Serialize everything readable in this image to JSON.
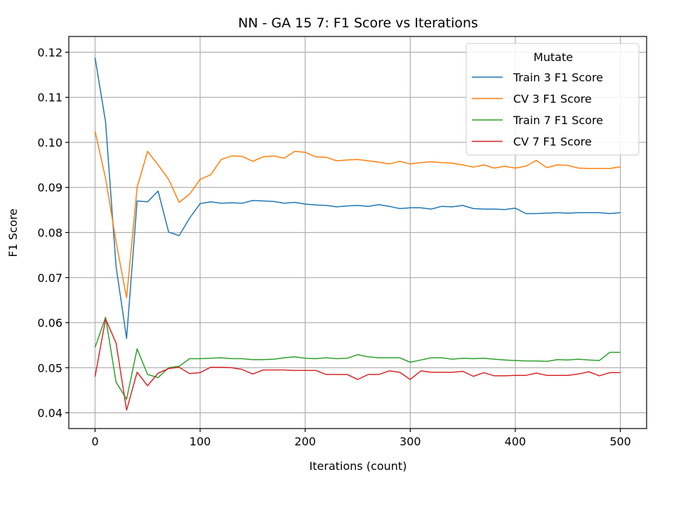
{
  "chart_data": {
    "type": "line",
    "title": "NN - GA 15 7: F1 Score vs Iterations",
    "xlabel": "Iterations (count)",
    "ylabel": "F1 Score",
    "xlim": [
      -25,
      525
    ],
    "ylim": [
      0.0365,
      0.1235
    ],
    "xticks": [
      0,
      100,
      200,
      300,
      400,
      500
    ],
    "yticks": [
      0.04,
      0.05,
      0.06,
      0.07,
      0.08,
      0.09,
      0.1,
      0.11,
      0.12
    ],
    "grid": true,
    "legend": {
      "title": "Mutate",
      "placement": "top-right"
    },
    "x": [
      0,
      10,
      20,
      30,
      40,
      50,
      60,
      70,
      80,
      90,
      100,
      110,
      120,
      130,
      140,
      150,
      160,
      170,
      180,
      190,
      200,
      210,
      220,
      230,
      240,
      250,
      260,
      270,
      280,
      290,
      300,
      310,
      320,
      330,
      340,
      350,
      360,
      370,
      380,
      390,
      400,
      410,
      420,
      430,
      440,
      450,
      460,
      470,
      480,
      490,
      500
    ],
    "series": [
      {
        "name": "Train 3 F1 Score",
        "color": "#1f77b4",
        "values": [
          0.1188,
          0.1045,
          0.0725,
          0.0565,
          0.087,
          0.0868,
          0.0892,
          0.0801,
          0.0793,
          0.0832,
          0.0864,
          0.0868,
          0.0865,
          0.0866,
          0.0865,
          0.0871,
          0.087,
          0.0869,
          0.0865,
          0.0867,
          0.0863,
          0.0861,
          0.086,
          0.0857,
          0.0859,
          0.086,
          0.0858,
          0.0862,
          0.0858,
          0.0853,
          0.0855,
          0.0855,
          0.0852,
          0.0858,
          0.0857,
          0.086,
          0.0853,
          0.0852,
          0.0852,
          0.0851,
          0.0854,
          0.0842,
          0.0842,
          0.0843,
          0.0844,
          0.0843,
          0.0844,
          0.0844,
          0.0844,
          0.0842,
          0.0844
        ]
      },
      {
        "name": "CV 3 F1 Score",
        "color": "#ff7f0e",
        "values": [
          0.1025,
          0.092,
          0.078,
          0.0655,
          0.09,
          0.098,
          0.095,
          0.0918,
          0.0867,
          0.0885,
          0.0918,
          0.0928,
          0.0962,
          0.097,
          0.0969,
          0.0958,
          0.0968,
          0.097,
          0.0965,
          0.098,
          0.0978,
          0.0968,
          0.0967,
          0.0959,
          0.0961,
          0.0962,
          0.0959,
          0.0956,
          0.0952,
          0.0958,
          0.0952,
          0.0955,
          0.0957,
          0.0955,
          0.0954,
          0.095,
          0.0945,
          0.095,
          0.0943,
          0.0947,
          0.0943,
          0.0947,
          0.096,
          0.0944,
          0.095,
          0.0949,
          0.0943,
          0.0942,
          0.0942,
          0.0942,
          0.0946
        ]
      },
      {
        "name": "Train 7 F1 Score",
        "color": "#2ca02c",
        "values": [
          0.0545,
          0.0612,
          0.0468,
          0.043,
          0.0542,
          0.0485,
          0.0478,
          0.05,
          0.0503,
          0.052,
          0.052,
          0.0521,
          0.0522,
          0.052,
          0.052,
          0.0518,
          0.0518,
          0.0519,
          0.0522,
          0.0524,
          0.0521,
          0.052,
          0.0522,
          0.052,
          0.0521,
          0.0529,
          0.0524,
          0.0522,
          0.0522,
          0.0522,
          0.0512,
          0.0517,
          0.0522,
          0.0522,
          0.0519,
          0.0521,
          0.052,
          0.0521,
          0.0519,
          0.0517,
          0.0516,
          0.0515,
          0.0515,
          0.0514,
          0.0518,
          0.0517,
          0.0519,
          0.0517,
          0.0516,
          0.0534,
          0.0534
        ]
      },
      {
        "name": "CV 7 F1 Score",
        "color": "#d62728",
        "values": [
          0.048,
          0.0608,
          0.0555,
          0.0406,
          0.049,
          0.046,
          0.0488,
          0.0498,
          0.0501,
          0.0487,
          0.0489,
          0.0501,
          0.0501,
          0.05,
          0.0496,
          0.0486,
          0.0495,
          0.0495,
          0.0495,
          0.0494,
          0.0494,
          0.0494,
          0.0485,
          0.0485,
          0.0485,
          0.0474,
          0.0485,
          0.0485,
          0.0493,
          0.049,
          0.0474,
          0.0493,
          0.049,
          0.049,
          0.049,
          0.0492,
          0.0481,
          0.0489,
          0.0482,
          0.0482,
          0.0483,
          0.0483,
          0.0488,
          0.0483,
          0.0483,
          0.0483,
          0.0486,
          0.0491,
          0.0482,
          0.0489,
          0.0489
        ]
      }
    ]
  }
}
